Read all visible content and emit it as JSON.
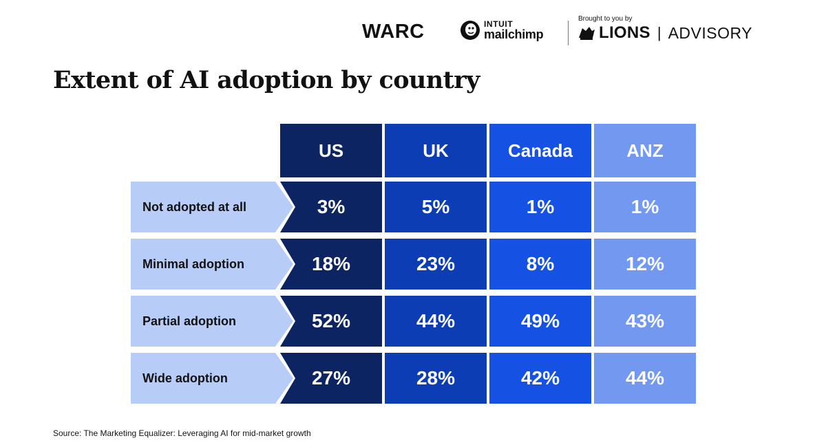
{
  "header": {
    "warc_logo": "WARC",
    "mailchimp_intuit": "INTUIT",
    "mailchimp_name": "mailchimp",
    "brought_by": "Brought to you by",
    "lions": "LIONS",
    "separator": "|",
    "advisory": "ADVISORY"
  },
  "title": "Extent of AI adoption by country",
  "source": "Source: The Marketing Equalizer: Leveraging AI for mid-market growth",
  "colors": {
    "US": "#0c2462",
    "UK": "#0d3db5",
    "Canada": "#1552e3",
    "ANZ": "#7298f0",
    "row_label_bg": "#b7cdf8"
  },
  "chart_data": {
    "type": "table",
    "title": "Extent of AI adoption by country",
    "columns": [
      "US",
      "UK",
      "Canada",
      "ANZ"
    ],
    "rows": [
      {
        "label": "Not adopted at all",
        "values": [
          "3%",
          "5%",
          "1%",
          "1%"
        ]
      },
      {
        "label": "Minimal adoption",
        "values": [
          "18%",
          "23%",
          "8%",
          "12%"
        ]
      },
      {
        "label": "Partial adoption",
        "values": [
          "52%",
          "44%",
          "49%",
          "43%"
        ]
      },
      {
        "label": "Wide adoption",
        "values": [
          "27%",
          "28%",
          "42%",
          "44%"
        ]
      }
    ]
  }
}
